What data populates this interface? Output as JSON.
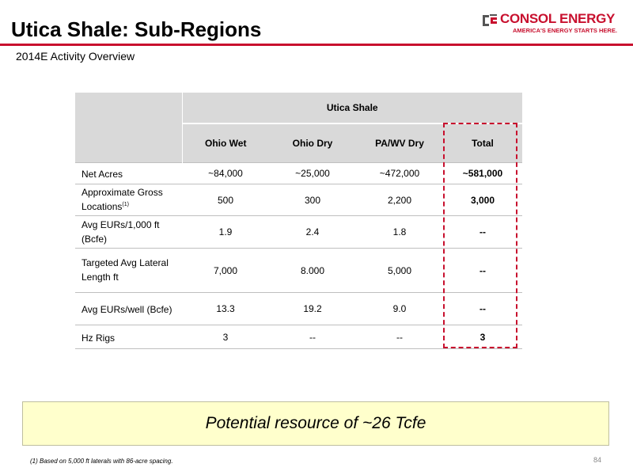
{
  "header": {
    "title": "Utica Shale: Sub-Regions",
    "subtitle": "2014E Activity Overview",
    "accent_color": "#c8102e"
  },
  "logo": {
    "name": "CONSOL ENERGY",
    "tagline": "AMERICA'S ENERGY STARTS HERE."
  },
  "table": {
    "group_header": "Utica Shale",
    "columns": [
      "Ohio Wet",
      "Ohio Dry",
      "PA/WV Dry",
      "Total"
    ],
    "rows": [
      {
        "label": "Net Acres",
        "label_sup": "",
        "values": [
          "~84,000",
          "~25,000",
          "~472,000",
          "~581,000"
        ]
      },
      {
        "label": "Approximate Gross Locations",
        "label_sup": "(1)",
        "values": [
          "500",
          "300",
          "2,200",
          "3,000"
        ]
      },
      {
        "label": "Avg EURs/1,000 ft (Bcfe)",
        "label_sup": "",
        "values": [
          "1.9",
          "2.4",
          "1.8",
          "--"
        ]
      },
      {
        "label": "Targeted Avg Lateral Length ft",
        "label_sup": "",
        "values": [
          "7,000",
          "8.000",
          "5,000",
          "--"
        ]
      },
      {
        "label": "Avg EURs/well (Bcfe)",
        "label_sup": "",
        "values": [
          "13.3",
          "19.2",
          "9.0",
          "--"
        ]
      },
      {
        "label": "Hz Rigs",
        "label_sup": "",
        "values": [
          "3",
          "--",
          "--",
          "3"
        ]
      }
    ],
    "header_bg": "#d9d9d9",
    "highlight_color": "#c8102e"
  },
  "callout": {
    "text": "Potential resource of ~26 Tcfe",
    "bg_color": "#ffffcc"
  },
  "footer": {
    "footnote": "(1)  Based on 5,000 ft laterals with 86-acre spacing.",
    "page_number": "84"
  }
}
